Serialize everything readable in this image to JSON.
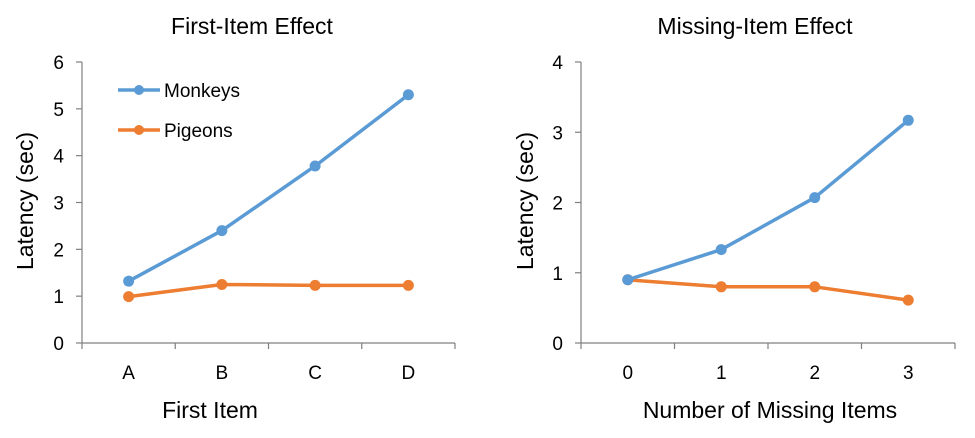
{
  "chart_data": [
    {
      "type": "line",
      "title": "First-Item Effect",
      "xlabel": "First Item",
      "ylabel": "Latency (sec)",
      "categories": [
        "A",
        "B",
        "C",
        "D"
      ],
      "ylim": [
        0,
        6
      ],
      "yticks": [
        "0",
        "1",
        "2",
        "3",
        "4",
        "5",
        "6"
      ],
      "grid": false,
      "legend_position": "top-left",
      "series": [
        {
          "name": "Monkeys",
          "color": "#5B9BD5",
          "values": [
            1.32,
            2.4,
            3.78,
            5.3
          ]
        },
        {
          "name": "Pigeons",
          "color": "#ED7D31",
          "values": [
            0.99,
            1.25,
            1.23,
            1.23
          ]
        }
      ]
    },
    {
      "type": "line",
      "title": "Missing-Item Effect",
      "xlabel": "Number of Missing Items",
      "ylabel": "Latency (sec)",
      "categories": [
        "0",
        "1",
        "2",
        "3"
      ],
      "ylim": [
        0,
        4
      ],
      "yticks": [
        "0",
        "1",
        "2",
        "3",
        "4"
      ],
      "grid": false,
      "series": [
        {
          "name": "Monkeys",
          "color": "#5B9BD5",
          "values": [
            0.9,
            1.33,
            2.07,
            3.17
          ]
        },
        {
          "name": "Pigeons",
          "color": "#ED7D31",
          "values": [
            0.9,
            0.8,
            0.8,
            0.61
          ]
        }
      ]
    }
  ]
}
